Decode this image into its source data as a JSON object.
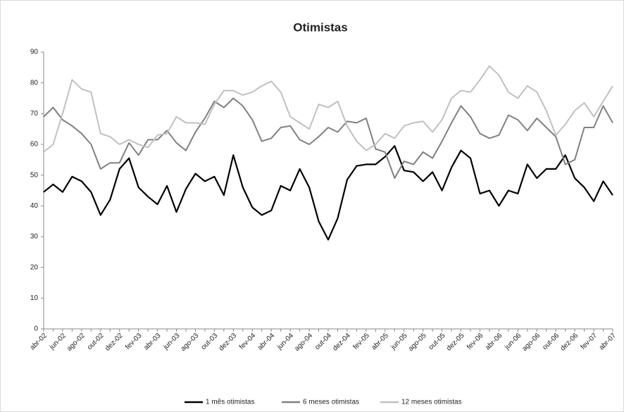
{
  "chart_data": {
    "type": "line",
    "title": "Otimistas",
    "categories": [
      "abr-02",
      null,
      "jun-02",
      null,
      "ago-02",
      null,
      "out-02",
      null,
      "dez-02",
      null,
      "fev-03",
      null,
      "abr-03",
      null,
      "jun-03",
      null,
      "ago-03",
      null,
      "out-03",
      null,
      "dez-03",
      null,
      "fev-04",
      null,
      "abr-04",
      null,
      "jun-04",
      null,
      "ago-04",
      null,
      "out-04",
      null,
      "dez-04",
      null,
      "fev-05",
      null,
      "abr-05",
      null,
      "jun-05",
      null,
      "ago-05",
      null,
      "out-05",
      null,
      "dez-05",
      null,
      "fev-06",
      null,
      "abr-06",
      null,
      "jun-06",
      null,
      "ago-06",
      null,
      "out-06",
      null,
      "dez-06",
      null,
      "fev-07",
      null,
      "abr-07"
    ],
    "series": [
      {
        "name": "1 mês otimistas",
        "color": "#000000",
        "values": [
          44.5,
          47,
          44.5,
          49.5,
          48,
          44.5,
          37,
          42,
          52,
          55.5,
          46,
          43,
          40.5,
          46.5,
          38,
          45.5,
          50.5,
          48,
          49.5,
          43.5,
          56.5,
          46,
          39.5,
          37,
          38.5,
          46.5,
          45,
          52,
          46,
          35,
          29,
          36,
          48.5,
          53,
          53.5,
          53.5,
          56,
          59.5,
          51.5,
          51,
          48,
          51,
          45,
          52.5,
          58,
          55.5,
          44,
          45,
          40,
          45,
          44,
          53.5,
          49,
          52,
          52,
          56.5,
          49,
          46,
          41.5,
          48,
          43.5
        ]
      },
      {
        "name": "6 meses otimistas",
        "color": "#808080",
        "values": [
          69,
          72,
          68,
          66,
          63.5,
          60,
          52,
          54,
          54,
          60.5,
          56.5,
          61.5,
          61.5,
          64.5,
          60.5,
          58,
          64,
          68.5,
          74,
          72,
          75,
          72.5,
          68,
          61,
          62,
          65.5,
          66,
          61.5,
          60,
          62.5,
          65.5,
          64,
          67.5,
          67,
          68.5,
          58.5,
          57.5,
          49,
          54.5,
          53.5,
          57.5,
          55.5,
          61,
          67,
          72.5,
          69,
          63.5,
          62,
          63,
          69.5,
          68,
          64.5,
          68.5,
          65.5,
          62.5,
          53.5,
          55,
          65.5,
          65.5,
          72.5,
          67
        ]
      },
      {
        "name": "12 meses otimistas",
        "color": "#c0c0c0",
        "values": [
          57.5,
          60,
          70,
          81,
          78,
          77,
          63.5,
          62.5,
          60,
          61.5,
          60,
          59,
          63,
          63.5,
          69,
          67,
          67,
          66.5,
          73,
          77.5,
          77.5,
          76,
          77,
          79,
          80.5,
          77,
          69,
          67,
          65,
          73,
          72,
          74,
          66,
          61,
          58,
          60,
          63.5,
          62,
          66,
          67,
          67.5,
          64,
          68,
          75,
          77.5,
          77,
          81,
          85.5,
          82.5,
          77,
          75,
          79,
          77,
          71,
          63,
          66.5,
          71,
          73.5,
          69,
          74,
          79
        ]
      }
    ],
    "ylim": [
      0,
      90
    ],
    "yticks": [
      0,
      10,
      20,
      30,
      40,
      50,
      60,
      70,
      80,
      90
    ],
    "grid": false,
    "legend": "bottom"
  }
}
